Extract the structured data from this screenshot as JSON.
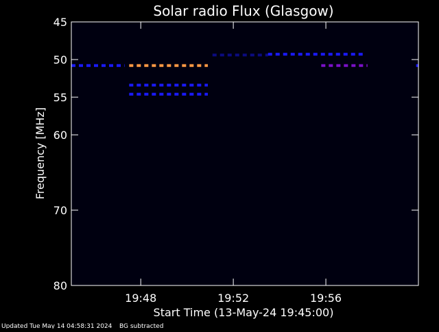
{
  "chart_data": {
    "type": "heatmap",
    "title": "Solar radio Flux (Glasgow)",
    "xlabel": "Start Time (13-May-24 19:45:00)",
    "ylabel": "Frequency [MHz]",
    "x_tick_labels": [
      "19:48",
      "19:52",
      "19:56"
    ],
    "x_ticks_minutes_after_start": [
      3,
      7,
      11
    ],
    "xlim_minutes_after_start": [
      0,
      15
    ],
    "y_ticks_mhz": [
      45,
      50,
      55,
      60,
      70,
      80
    ],
    "ylim_mhz": [
      45,
      80
    ],
    "background_color": "#000010",
    "features": [
      {
        "freq_mhz": 50.8,
        "t_start": 0.0,
        "t_end": 2.3,
        "color": "#1a1aff"
      },
      {
        "freq_mhz": 50.8,
        "t_start": 2.5,
        "t_end": 5.9,
        "color": "#ff9944"
      },
      {
        "freq_mhz": 53.4,
        "t_start": 2.5,
        "t_end": 5.9,
        "color": "#1a1aff"
      },
      {
        "freq_mhz": 54.6,
        "t_start": 2.5,
        "t_end": 5.9,
        "color": "#1a1aff"
      },
      {
        "freq_mhz": 49.4,
        "t_start": 6.1,
        "t_end": 8.5,
        "color": "#0b0b80"
      },
      {
        "freq_mhz": 49.3,
        "t_start": 8.5,
        "t_end": 12.6,
        "color": "#1a1aff"
      },
      {
        "freq_mhz": 50.8,
        "t_start": 10.8,
        "t_end": 12.8,
        "color": "#7a10c8"
      },
      {
        "freq_mhz": 50.8,
        "t_start": 14.9,
        "t_end": 15.0,
        "color": "#1a1aff"
      }
    ]
  },
  "footer": {
    "updated": "Updated Tue May 14 04:58:31 2024",
    "note": "BG subtracted"
  }
}
